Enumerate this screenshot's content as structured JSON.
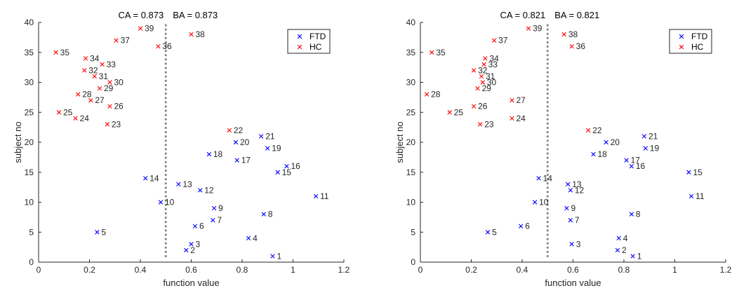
{
  "chart_data": [
    {
      "type": "scatter",
      "title_ca": "CA = 0.873",
      "title_ba": "BA = 0.873",
      "xlabel": "function value",
      "ylabel": "subject no",
      "xlim": [
        0,
        1.2
      ],
      "ylim": [
        0,
        40
      ],
      "xticks": [
        0,
        0.2,
        0.4,
        0.6,
        0.8,
        1,
        1.2
      ],
      "xtick_labels": [
        "0",
        "0.2",
        "0.4",
        "0.6",
        "0.8",
        "1",
        "1.2"
      ],
      "yticks": [
        0,
        5,
        10,
        15,
        20,
        25,
        30,
        35,
        40
      ],
      "ytick_labels": [
        "0",
        "5",
        "10",
        "15",
        "20",
        "25",
        "30",
        "35",
        "40"
      ],
      "threshold": 0.5,
      "legend_position": "top-right",
      "series": [
        {
          "name": "FTD",
          "color": "#0000ff",
          "marker": "x",
          "points": [
            {
              "x": 0.92,
              "y": 1,
              "label": "1"
            },
            {
              "x": 0.58,
              "y": 2,
              "label": "2"
            },
            {
              "x": 0.6,
              "y": 3,
              "label": "3"
            },
            {
              "x": 0.825,
              "y": 4,
              "label": "4"
            },
            {
              "x": 0.23,
              "y": 5,
              "label": "5"
            },
            {
              "x": 0.615,
              "y": 6,
              "label": "6"
            },
            {
              "x": 0.685,
              "y": 7,
              "label": "7"
            },
            {
              "x": 0.885,
              "y": 8,
              "label": "8"
            },
            {
              "x": 0.69,
              "y": 9,
              "label": "9"
            },
            {
              "x": 0.48,
              "y": 10,
              "label": "10"
            },
            {
              "x": 1.09,
              "y": 11,
              "label": "11"
            },
            {
              "x": 0.635,
              "y": 12,
              "label": "12"
            },
            {
              "x": 0.55,
              "y": 13,
              "label": "13"
            },
            {
              "x": 0.42,
              "y": 14,
              "label": "14"
            },
            {
              "x": 0.94,
              "y": 15,
              "label": "15"
            },
            {
              "x": 0.975,
              "y": 16,
              "label": "16"
            },
            {
              "x": 0.78,
              "y": 17,
              "label": "17"
            },
            {
              "x": 0.67,
              "y": 18,
              "label": "18"
            },
            {
              "x": 0.9,
              "y": 19,
              "label": "19"
            },
            {
              "x": 0.775,
              "y": 20,
              "label": "20"
            },
            {
              "x": 0.875,
              "y": 21,
              "label": "21"
            }
          ]
        },
        {
          "name": "HC",
          "color": "#ff0000",
          "marker": "x",
          "points": [
            {
              "x": 0.75,
              "y": 22,
              "label": "22"
            },
            {
              "x": 0.27,
              "y": 23,
              "label": "23"
            },
            {
              "x": 0.145,
              "y": 24,
              "label": "24"
            },
            {
              "x": 0.08,
              "y": 25,
              "label": "25"
            },
            {
              "x": 0.28,
              "y": 26,
              "label": "26"
            },
            {
              "x": 0.205,
              "y": 27,
              "label": "27"
            },
            {
              "x": 0.155,
              "y": 28,
              "label": "28"
            },
            {
              "x": 0.24,
              "y": 29,
              "label": "29"
            },
            {
              "x": 0.28,
              "y": 30,
              "label": "30"
            },
            {
              "x": 0.22,
              "y": 31,
              "label": "31"
            },
            {
              "x": 0.18,
              "y": 32,
              "label": "32"
            },
            {
              "x": 0.25,
              "y": 33,
              "label": "33"
            },
            {
              "x": 0.185,
              "y": 34,
              "label": "34"
            },
            {
              "x": 0.068,
              "y": 35,
              "label": "35"
            },
            {
              "x": 0.47,
              "y": 36,
              "label": "36"
            },
            {
              "x": 0.305,
              "y": 37,
              "label": "37"
            },
            {
              "x": 0.6,
              "y": 38,
              "label": "38"
            },
            {
              "x": 0.4,
              "y": 39,
              "label": "39"
            }
          ]
        }
      ]
    },
    {
      "type": "scatter",
      "title_ca": "CA = 0.821",
      "title_ba": "BA = 0.821",
      "xlabel": "function value",
      "ylabel": "subject no",
      "xlim": [
        0,
        1.2
      ],
      "ylim": [
        0,
        40
      ],
      "xticks": [
        0,
        0.2,
        0.4,
        0.6,
        0.8,
        1,
        1.2
      ],
      "xtick_labels": [
        "0",
        "0.2",
        "0.4",
        "0.6",
        "0.8",
        "1",
        "1.2"
      ],
      "yticks": [
        0,
        5,
        10,
        15,
        20,
        25,
        30,
        35,
        40
      ],
      "ytick_labels": [
        "0",
        "5",
        "10",
        "15",
        "20",
        "25",
        "30",
        "35",
        "40"
      ],
      "threshold": 0.5,
      "legend_position": "top-right",
      "series": [
        {
          "name": "FTD",
          "color": "#0000ff",
          "marker": "x",
          "points": [
            {
              "x": 0.835,
              "y": 1,
              "label": "1"
            },
            {
              "x": 0.775,
              "y": 2,
              "label": "2"
            },
            {
              "x": 0.595,
              "y": 3,
              "label": "3"
            },
            {
              "x": 0.78,
              "y": 4,
              "label": "4"
            },
            {
              "x": 0.265,
              "y": 5,
              "label": "5"
            },
            {
              "x": 0.395,
              "y": 6,
              "label": "6"
            },
            {
              "x": 0.59,
              "y": 7,
              "label": "7"
            },
            {
              "x": 0.83,
              "y": 8,
              "label": "8"
            },
            {
              "x": 0.575,
              "y": 9,
              "label": "9"
            },
            {
              "x": 0.45,
              "y": 10,
              "label": "10"
            },
            {
              "x": 1.065,
              "y": 11,
              "label": "11"
            },
            {
              "x": 0.59,
              "y": 12,
              "label": "12"
            },
            {
              "x": 0.58,
              "y": 13,
              "label": "13"
            },
            {
              "x": 0.465,
              "y": 14,
              "label": "14"
            },
            {
              "x": 1.055,
              "y": 15,
              "label": "15"
            },
            {
              "x": 0.83,
              "y": 16,
              "label": "16"
            },
            {
              "x": 0.81,
              "y": 17,
              "label": "17"
            },
            {
              "x": 0.68,
              "y": 18,
              "label": "18"
            },
            {
              "x": 0.885,
              "y": 19,
              "label": "19"
            },
            {
              "x": 0.73,
              "y": 20,
              "label": "20"
            },
            {
              "x": 0.88,
              "y": 21,
              "label": "21"
            }
          ]
        },
        {
          "name": "HC",
          "color": "#ff0000",
          "marker": "x",
          "points": [
            {
              "x": 0.66,
              "y": 22,
              "label": "22"
            },
            {
              "x": 0.235,
              "y": 23,
              "label": "23"
            },
            {
              "x": 0.36,
              "y": 24,
              "label": "24"
            },
            {
              "x": 0.115,
              "y": 25,
              "label": "25"
            },
            {
              "x": 0.21,
              "y": 26,
              "label": "26"
            },
            {
              "x": 0.36,
              "y": 27,
              "label": "27"
            },
            {
              "x": 0.025,
              "y": 28,
              "label": "28"
            },
            {
              "x": 0.225,
              "y": 29,
              "label": "29"
            },
            {
              "x": 0.245,
              "y": 30,
              "label": "30"
            },
            {
              "x": 0.24,
              "y": 31,
              "label": "31"
            },
            {
              "x": 0.21,
              "y": 32,
              "label": "32"
            },
            {
              "x": 0.25,
              "y": 33,
              "label": "33"
            },
            {
              "x": 0.255,
              "y": 34,
              "label": "34"
            },
            {
              "x": 0.045,
              "y": 35,
              "label": "35"
            },
            {
              "x": 0.595,
              "y": 36,
              "label": "36"
            },
            {
              "x": 0.29,
              "y": 37,
              "label": "37"
            },
            {
              "x": 0.565,
              "y": 38,
              "label": "38"
            },
            {
              "x": 0.425,
              "y": 39,
              "label": "39"
            }
          ]
        }
      ]
    }
  ],
  "colors": {
    "axis": "#262626",
    "threshold_line": "#808080",
    "legend_border": "#262626"
  }
}
